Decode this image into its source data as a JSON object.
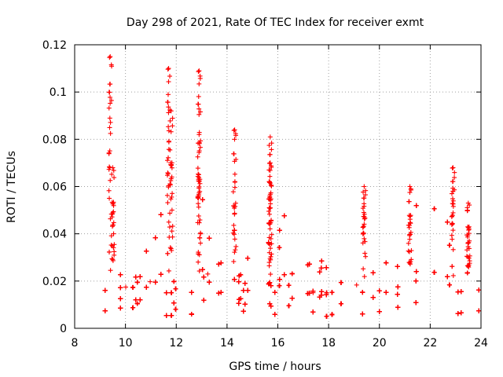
{
  "chart_data": {
    "type": "scatter",
    "title": "Day 298 of 2021, Rate Of TEC Index for receiver exmt",
    "xlabel": "GPS time / hours",
    "ylabel": "ROTI / TECUs",
    "xlim": [
      8,
      24
    ],
    "ylim": [
      0,
      0.12
    ],
    "xticks": [
      "8",
      "10",
      "12",
      "14",
      "16",
      "18",
      "20",
      "22",
      "24"
    ],
    "yticks": [
      "0",
      "0.02",
      "0.04",
      "0.06",
      "0.08",
      "0.1",
      "0.12"
    ],
    "grid": true,
    "marker": "+",
    "color": "#ff0000",
    "series": [
      {
        "name": "ROTI",
        "x_range": [
          9.0,
          24.0
        ],
        "baseline_range": [
          0.005,
          0.025
        ],
        "peaks": [
          {
            "x": 9.4,
            "y": 0.115
          },
          {
            "x": 9.5,
            "y": 0.068
          },
          {
            "x": 11.7,
            "y": 0.11
          },
          {
            "x": 11.8,
            "y": 0.092
          },
          {
            "x": 12.9,
            "y": 0.109
          },
          {
            "x": 12.9,
            "y": 0.082
          },
          {
            "x": 14.3,
            "y": 0.084
          },
          {
            "x": 15.7,
            "y": 0.081
          },
          {
            "x": 15.7,
            "y": 0.07
          },
          {
            "x": 19.4,
            "y": 0.06
          },
          {
            "x": 21.2,
            "y": 0.06
          },
          {
            "x": 22.9,
            "y": 0.068
          },
          {
            "x": 23.5,
            "y": 0.053
          }
        ]
      }
    ]
  }
}
